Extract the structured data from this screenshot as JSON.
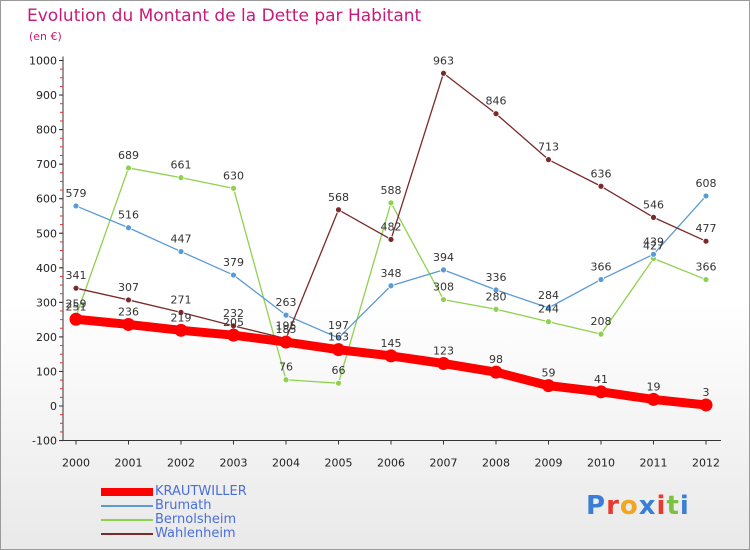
{
  "title": "Evolution du Montant de la Dette par Habitant",
  "subtitle": "(en €)",
  "logo_text": "Proxiti",
  "chart_data": {
    "type": "line",
    "x": [
      "2000",
      "2001",
      "2002",
      "2003",
      "2004",
      "2005",
      "2006",
      "2007",
      "2008",
      "2009",
      "2010",
      "2011",
      "2012"
    ],
    "ylim": [
      -100,
      1000
    ],
    "yticks": [
      -100,
      0,
      100,
      200,
      300,
      400,
      500,
      600,
      700,
      800,
      900,
      1000
    ],
    "grid": false,
    "legend_position": "bottom-left",
    "series": [
      {
        "name": "KRAUTWILLER",
        "color": "#ff0000",
        "values": [
          251,
          236,
          219,
          205,
          185,
          163,
          145,
          123,
          98,
          59,
          41,
          19,
          3
        ],
        "labels": [
          "251",
          "236",
          "219",
          "205",
          "185",
          "163",
          "145",
          "123",
          "98",
          "59",
          "41",
          "19",
          "3"
        ]
      },
      {
        "name": "Brumath",
        "color": "#5b9bd5",
        "values": [
          579,
          516,
          447,
          379,
          263,
          197,
          348,
          394,
          336,
          284,
          366,
          439,
          608
        ],
        "labels": [
          "579",
          "516",
          "447",
          "379",
          "263",
          "197",
          "348",
          "394",
          "336",
          "284",
          "366",
          "439",
          "608"
        ]
      },
      {
        "name": "Bernolsheim",
        "color": "#8fd14f",
        "values": [
          259,
          689,
          661,
          630,
          76,
          66,
          588,
          308,
          280,
          244,
          208,
          427,
          366
        ],
        "labels": [
          "259",
          "689",
          "661",
          "630",
          "76",
          "66",
          "588",
          "308",
          "280",
          "244",
          "208",
          "427",
          "366"
        ]
      },
      {
        "name": "Wahlenheim",
        "color": "#7a2a2a",
        "values": [
          341,
          307,
          271,
          232,
          195,
          568,
          482,
          963,
          846,
          713,
          636,
          546,
          477
        ],
        "labels": [
          "341",
          "307",
          "271",
          "232",
          "195",
          "568",
          "482",
          "963",
          "846",
          "713",
          "636",
          "546",
          "477"
        ]
      }
    ]
  },
  "colors": {
    "title": "#c8197a",
    "legend_text": "#4a6fd8",
    "logo": [
      "#3a7fd5",
      "#e63b2e",
      "#f2a51f",
      "#3a7fd5",
      "#e63b2e",
      "#7cc142",
      "#3a7fd5"
    ]
  }
}
